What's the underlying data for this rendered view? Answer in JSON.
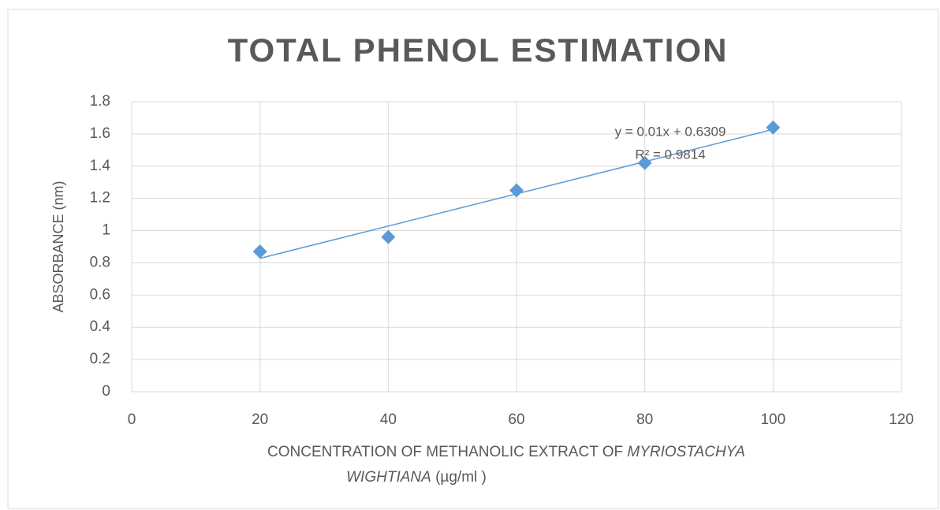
{
  "chart_data": {
    "type": "scatter",
    "title": "TOTAL PHENOL ESTIMATION",
    "x_label": [
      "CONCENTRATION OF METHANOLIC EXTRACT OF ",
      "MYRIOSTACHYA",
      "WIGHTIANA",
      "  (µg/ml )"
    ],
    "y_label": "ABSORBANCE  (nm)",
    "x": [
      20,
      40,
      60,
      80,
      100
    ],
    "values": [
      0.87,
      0.96,
      1.25,
      1.42,
      1.64
    ],
    "color": "#5b9bd5",
    "trendline": true,
    "annotations": [
      "y = 0.01x + 0.6309",
      "R² = 0.9814"
    ],
    "xlim": [
      0,
      120
    ],
    "xticks": [
      0,
      20,
      40,
      60,
      80,
      100,
      120
    ],
    "ylim": [
      0,
      1.8
    ],
    "yticks": [
      0,
      0.2,
      0.4,
      0.6,
      0.8,
      1,
      1.2,
      1.4,
      1.6,
      1.8
    ],
    "grid": true
  }
}
